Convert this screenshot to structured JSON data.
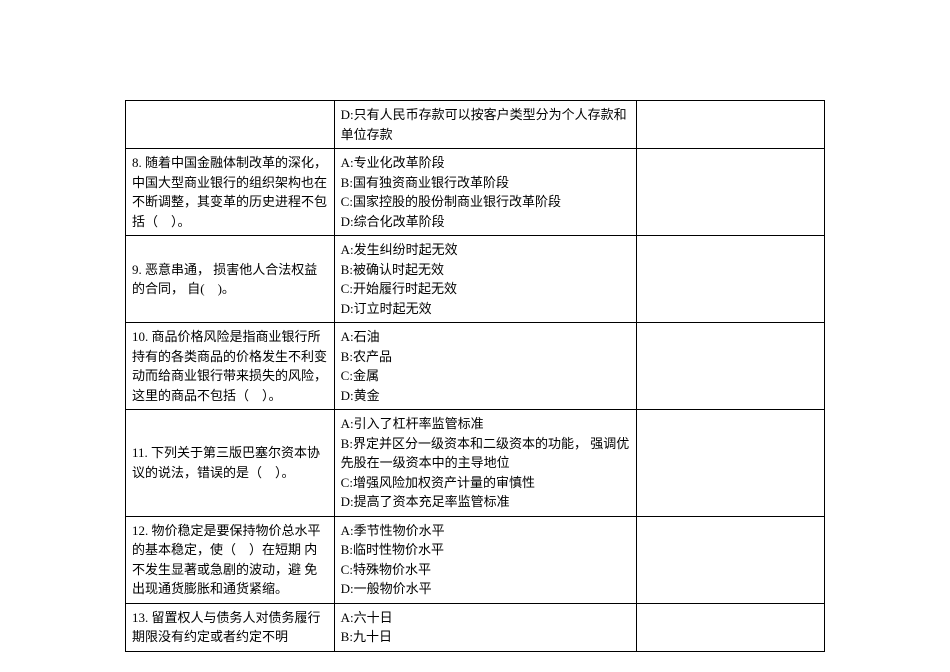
{
  "table": {
    "columns": {
      "col1_width": 200,
      "col2_width": 290,
      "col3_width": 180
    },
    "rows": [
      {
        "question": "",
        "options": [
          "D:只有人民币存款可以按客户类型分为个人存款和单位存款"
        ],
        "answer": ""
      },
      {
        "question": "8. 随着中国金融体制改革的深化，中国大型商业银行的组织架构也在不断调整，其变革的历史进程不包括（　）。",
        "options": [
          "A:专业化改革阶段",
          "B:国有独资商业银行改革阶段",
          "C:国家控股的股份制商业银行改革阶段",
          "D:综合化改革阶段"
        ],
        "answer": ""
      },
      {
        "question": "9. 恶意串通， 损害他人合法权益 的合同，  自(　)。",
        "options": [
          "A:发生纠纷时起无效",
          "B:被确认时起无效",
          "C:开始履行时起无效",
          "D:订立时起无效"
        ],
        "answer": ""
      },
      {
        "question": "10. 商品价格风险是指商业银行所持有的各类商品的价格发生不利变动而给商业银行带来损失的风险，这里的商品不包括（　）。",
        "options": [
          "A:石油",
          "B:农产品",
          "C:金属",
          "D:黄金"
        ],
        "answer": ""
      },
      {
        "question": "11. 下列关于第三版巴塞尔资本协议的说法，错误的是（　）。",
        "options": [
          "A:引入了杠杆率监管标准",
          "B:界定并区分一级资本和二级资本的功能， 强调优先股在一级资本中的主导地位",
          "C:增强风险加权资产计量的审慎性",
          "D:提高了资本充足率监管标准"
        ],
        "answer": ""
      },
      {
        "question": "12. 物价稳定是要保持物价总水平的基本稳定，使（　）在短期  内不发生显著或急剧的波动，避 免出现通货膨胀和通货紧缩。",
        "options": [
          "A:季节性物价水平",
          "B:临时性物价水平",
          "C:特殊物价水平",
          "D:一般物价水平"
        ],
        "answer": ""
      },
      {
        "question": "13. 留置权人与债务人对债务履行期限没有约定或者约定不明",
        "options": [
          "A:六十日",
          "B:九十日"
        ],
        "answer": ""
      }
    ]
  },
  "style": {
    "font_family": "SimSun",
    "font_size": 13,
    "border_color": "#000000",
    "background_color": "#ffffff",
    "text_color": "#000000"
  }
}
